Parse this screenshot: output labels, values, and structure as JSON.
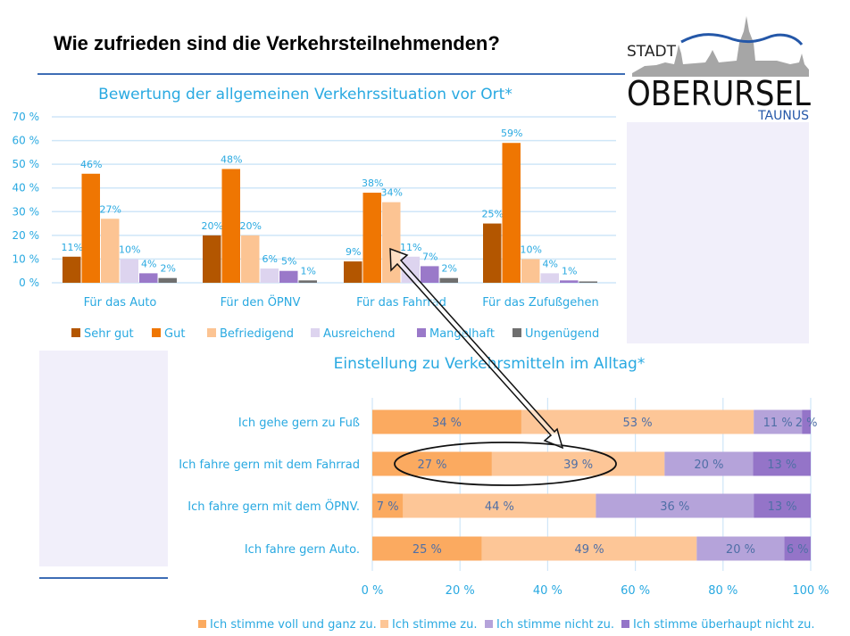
{
  "slide": {
    "title": "Wie zufrieden sind die Verkehrsteilnehmenden?",
    "accent_line_color": "#3d6db5",
    "panel_color": "#f1effa"
  },
  "logo": {
    "line1": "STADT",
    "line2": "OBERURSEL",
    "line3": "TAUNUS"
  },
  "chart_data": [
    {
      "type": "bar",
      "title": "Bewertung der allgemeinen Verkehrssituation vor Ort*",
      "categories": [
        "Für das Auto",
        "Für den ÖPNV",
        "Für das Fahrrad",
        "Für das Zufußgehen"
      ],
      "yticks": [
        "0 %",
        "10 %",
        "20 %",
        "30 %",
        "40 %",
        "50 %",
        "60 %",
        "70 %"
      ],
      "ylim": [
        0,
        70
      ],
      "grid": true,
      "legend_position": "bottom",
      "series": [
        {
          "name": "Sehr gut",
          "color": "#b35600",
          "values": [
            11,
            20,
            9,
            25
          ],
          "labels": [
            "11%",
            "20%",
            "9%",
            "25%"
          ]
        },
        {
          "name": "Gut",
          "color": "#ef7602",
          "values": [
            46,
            48,
            38,
            59
          ],
          "labels": [
            "46%",
            "48%",
            "38%",
            "59%"
          ]
        },
        {
          "name": "Befriedigend",
          "color": "#fcc493",
          "values": [
            27,
            20,
            34,
            10
          ],
          "labels": [
            "27%",
            "20%",
            "34%",
            "10%"
          ]
        },
        {
          "name": "Ausreichend",
          "color": "#ddd4ef",
          "values": [
            10,
            6,
            11,
            4
          ],
          "labels": [
            "10%",
            "6%",
            "11%",
            "4%"
          ]
        },
        {
          "name": "Mangelhaft",
          "color": "#9a79c9",
          "values": [
            4,
            5,
            7,
            1
          ],
          "labels": [
            "4%",
            "5%",
            "7%",
            "1%"
          ]
        },
        {
          "name": "Ungenügend",
          "color": "#6f6f6f",
          "values": [
            2,
            1,
            2,
            0
          ],
          "labels": [
            "2%",
            "1%",
            "2%",
            ""
          ]
        }
      ]
    },
    {
      "type": "bar",
      "orientation": "horizontal-stacked",
      "title": "Einstellung zu Verkehrsmitteln im Alltag*",
      "categories": [
        "Ich gehe gern zu Fuß",
        "Ich fahre gern mit dem Fahrrad",
        "Ich fahre gern mit dem ÖPNV.",
        "Ich fahre gern Auto."
      ],
      "xticks": [
        "0 %",
        "20 %",
        "40 %",
        "60 %",
        "80 %",
        "100 %"
      ],
      "xlim": [
        0,
        100
      ],
      "grid": true,
      "legend_position": "bottom",
      "series": [
        {
          "name": "Ich stimme voll und ganz zu.",
          "color": "#fbaa60",
          "values": [
            34,
            27,
            7,
            25
          ],
          "labels": [
            "34 %",
            "27 %",
            "7 %",
            "25 %"
          ]
        },
        {
          "name": "Ich stimme zu.",
          "color": "#fdc697",
          "values": [
            53,
            39,
            44,
            49
          ],
          "labels": [
            "53 %",
            "39 %",
            "44 %",
            "49 %"
          ]
        },
        {
          "name": "Ich stimme nicht zu.",
          "color": "#b5a3da",
          "values": [
            11,
            20,
            36,
            20
          ],
          "labels": [
            "11 %",
            "20 %",
            "36 %",
            "20 %"
          ]
        },
        {
          "name": "Ich stimme überhaupt nicht zu.",
          "color": "#9474c8",
          "values": [
            2,
            13,
            13,
            6
          ],
          "labels": [
            "2 %",
            "13 %",
            "13 %",
            "6 %"
          ]
        }
      ],
      "annotation": "Fahrrad row highlighted with ellipse; double arrow links to 'Für das Fahrrad' group"
    }
  ]
}
